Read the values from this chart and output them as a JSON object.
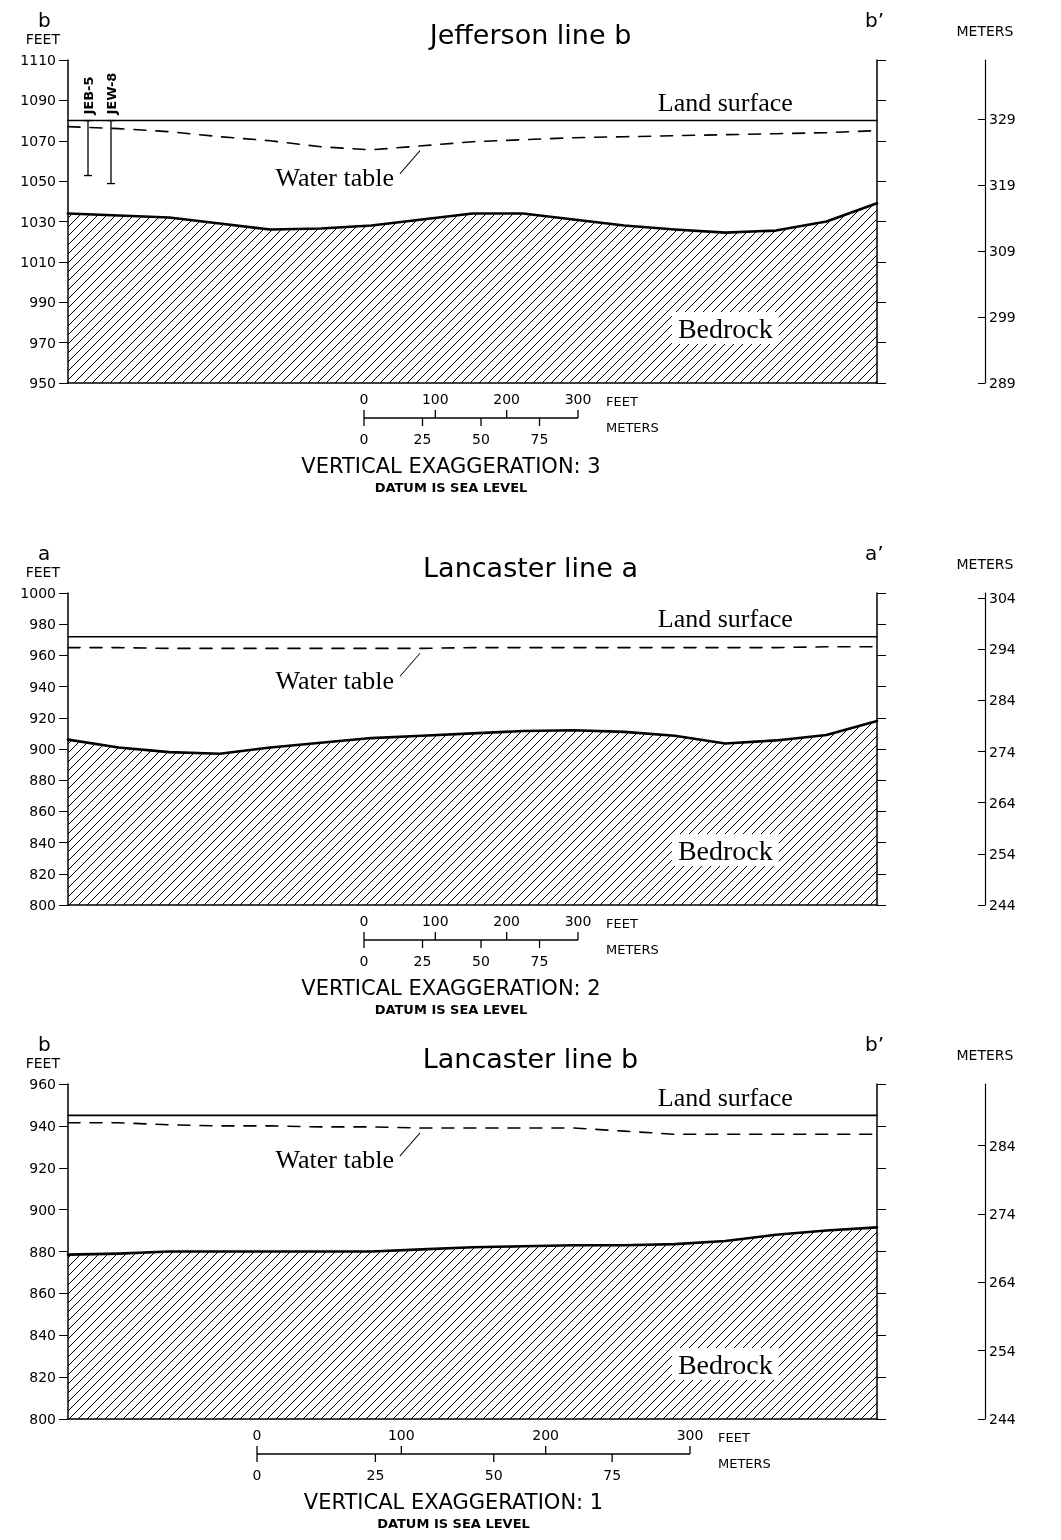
{
  "chart_data": [
    {
      "type": "line",
      "title": "Jefferson line b",
      "ylabel": "FEET",
      "y2label": "METERS",
      "marker": "none",
      "categories": [
        null,
        null,
        null,
        null,
        null,
        null,
        null,
        null,
        null,
        null,
        null,
        null,
        null,
        null,
        null,
        null,
        null
      ],
      "ylim": [
        950,
        1110
      ],
      "yticks": [
        950,
        970,
        990,
        1010,
        1030,
        1050,
        1070,
        1090,
        1110
      ],
      "y2lim": [
        289,
        338
      ],
      "y2ticks": [
        289,
        299,
        309,
        319,
        329
      ],
      "series": [
        {
          "name": "Land surface",
          "color": "#000000",
          "line_style": "solid",
          "values": [
            1080,
            1080,
            1080,
            1080,
            1080,
            1080,
            1080,
            1080,
            1080,
            1080,
            1080,
            1080,
            1080,
            1080,
            1080,
            1080,
            1080
          ]
        },
        {
          "name": "Water table",
          "color": "#000000",
          "line_style": "dashed",
          "values": [
            1077,
            1076,
            1074.5,
            1072,
            1070,
            1067,
            1065.5,
            1067.5,
            1069.5,
            1070.5,
            1071.5,
            1072,
            1072.5,
            1073,
            1073.5,
            1074,
            1075
          ]
        },
        {
          "name": "Bedrock",
          "type": "area",
          "color": "#000000",
          "line_style": "solid",
          "values": [
            1034,
            1033,
            1032,
            1029,
            1026,
            1026.5,
            1028,
            1031,
            1034,
            1034,
            1031,
            1028,
            1026,
            1024.5,
            1025.5,
            1030,
            1039
          ]
        }
      ],
      "annotations": [
        "b",
        "b’",
        "0",
        "100",
        "200",
        "300",
        "FEET",
        "0",
        "25",
        "50",
        "75",
        "METERS",
        "VERTICAL EXAGGERATION: 3",
        "DATUM IS SEA LEVEL",
        "JEB-5",
        "JEW-8"
      ]
    },
    {
      "type": "line",
      "title": "Lancaster line a",
      "ylabel": "FEET",
      "y2label": "METERS",
      "marker": "none",
      "categories": [
        null,
        null,
        null,
        null,
        null,
        null,
        null,
        null,
        null,
        null,
        null,
        null,
        null,
        null,
        null,
        null,
        null
      ],
      "ylim": [
        800,
        1000
      ],
      "yticks": [
        800,
        820,
        840,
        860,
        880,
        900,
        920,
        940,
        960,
        980,
        1000
      ],
      "y2lim": [
        244,
        305
      ],
      "y2ticks": [
        244,
        254,
        264,
        274,
        284,
        294,
        304
      ],
      "series": [
        {
          "name": "Land surface",
          "color": "#000000",
          "line_style": "solid",
          "values": [
            972,
            972,
            972,
            972,
            972,
            972,
            972,
            972,
            972,
            972,
            972,
            972,
            972,
            972,
            972,
            972,
            972
          ]
        },
        {
          "name": "Water table",
          "color": "#000000",
          "line_style": "dashed",
          "values": [
            965,
            965,
            964.5,
            964.5,
            964.5,
            964.5,
            964.5,
            964.5,
            965,
            965,
            965,
            965,
            965,
            965,
            965,
            965.5,
            965.5
          ]
        },
        {
          "name": "Bedrock",
          "type": "area",
          "color": "#000000",
          "line_style": "solid",
          "values": [
            906,
            901,
            898,
            897,
            901,
            904,
            907,
            908.5,
            910,
            911.5,
            912,
            911,
            908.5,
            903.5,
            905.5,
            909,
            918
          ]
        }
      ],
      "annotations": [
        "a",
        "a’",
        "0",
        "100",
        "200",
        "300",
        "FEET",
        "0",
        "25",
        "50",
        "75",
        "METERS",
        "VERTICAL EXAGGERATION: 2",
        "DATUM IS SEA LEVEL"
      ]
    },
    {
      "type": "line",
      "title": "Lancaster line b",
      "ylabel": "FEET",
      "y2label": "METERS",
      "marker": "none",
      "categories": [
        null,
        null,
        null,
        null,
        null,
        null,
        null,
        null,
        null,
        null,
        null,
        null,
        null,
        null,
        null,
        null,
        null
      ],
      "ylim": [
        800,
        960
      ],
      "yticks": [
        800,
        820,
        840,
        860,
        880,
        900,
        920,
        940,
        960
      ],
      "y2lim": [
        244,
        293
      ],
      "y2ticks": [
        244,
        254,
        264,
        274,
        284
      ],
      "series": [
        {
          "name": "Land surface",
          "color": "#000000",
          "line_style": "solid",
          "values": [
            945,
            945,
            945,
            945,
            945,
            945,
            945,
            945,
            945,
            945,
            945,
            945,
            945,
            945,
            945,
            945,
            945
          ]
        },
        {
          "name": "Water table",
          "color": "#000000",
          "line_style": "dashed",
          "values": [
            941.5,
            941.5,
            940.5,
            940,
            940,
            939.5,
            939.5,
            939,
            939,
            939,
            939,
            937.5,
            936,
            936,
            936,
            936,
            936
          ]
        },
        {
          "name": "Bedrock",
          "type": "area",
          "color": "#000000",
          "line_style": "solid",
          "values": [
            878.5,
            879,
            880,
            880,
            880,
            880,
            880,
            881,
            882,
            882.5,
            883,
            883,
            883.5,
            885,
            888,
            890,
            891.5
          ]
        }
      ],
      "annotations": [
        "b",
        "b’",
        "0",
        "100",
        "200",
        "300",
        "FEET",
        "0",
        "25",
        "50",
        "75",
        "METERS",
        "VERTICAL EXAGGERATION: 1",
        "DATUM IS SEA LEVEL"
      ]
    }
  ]
}
